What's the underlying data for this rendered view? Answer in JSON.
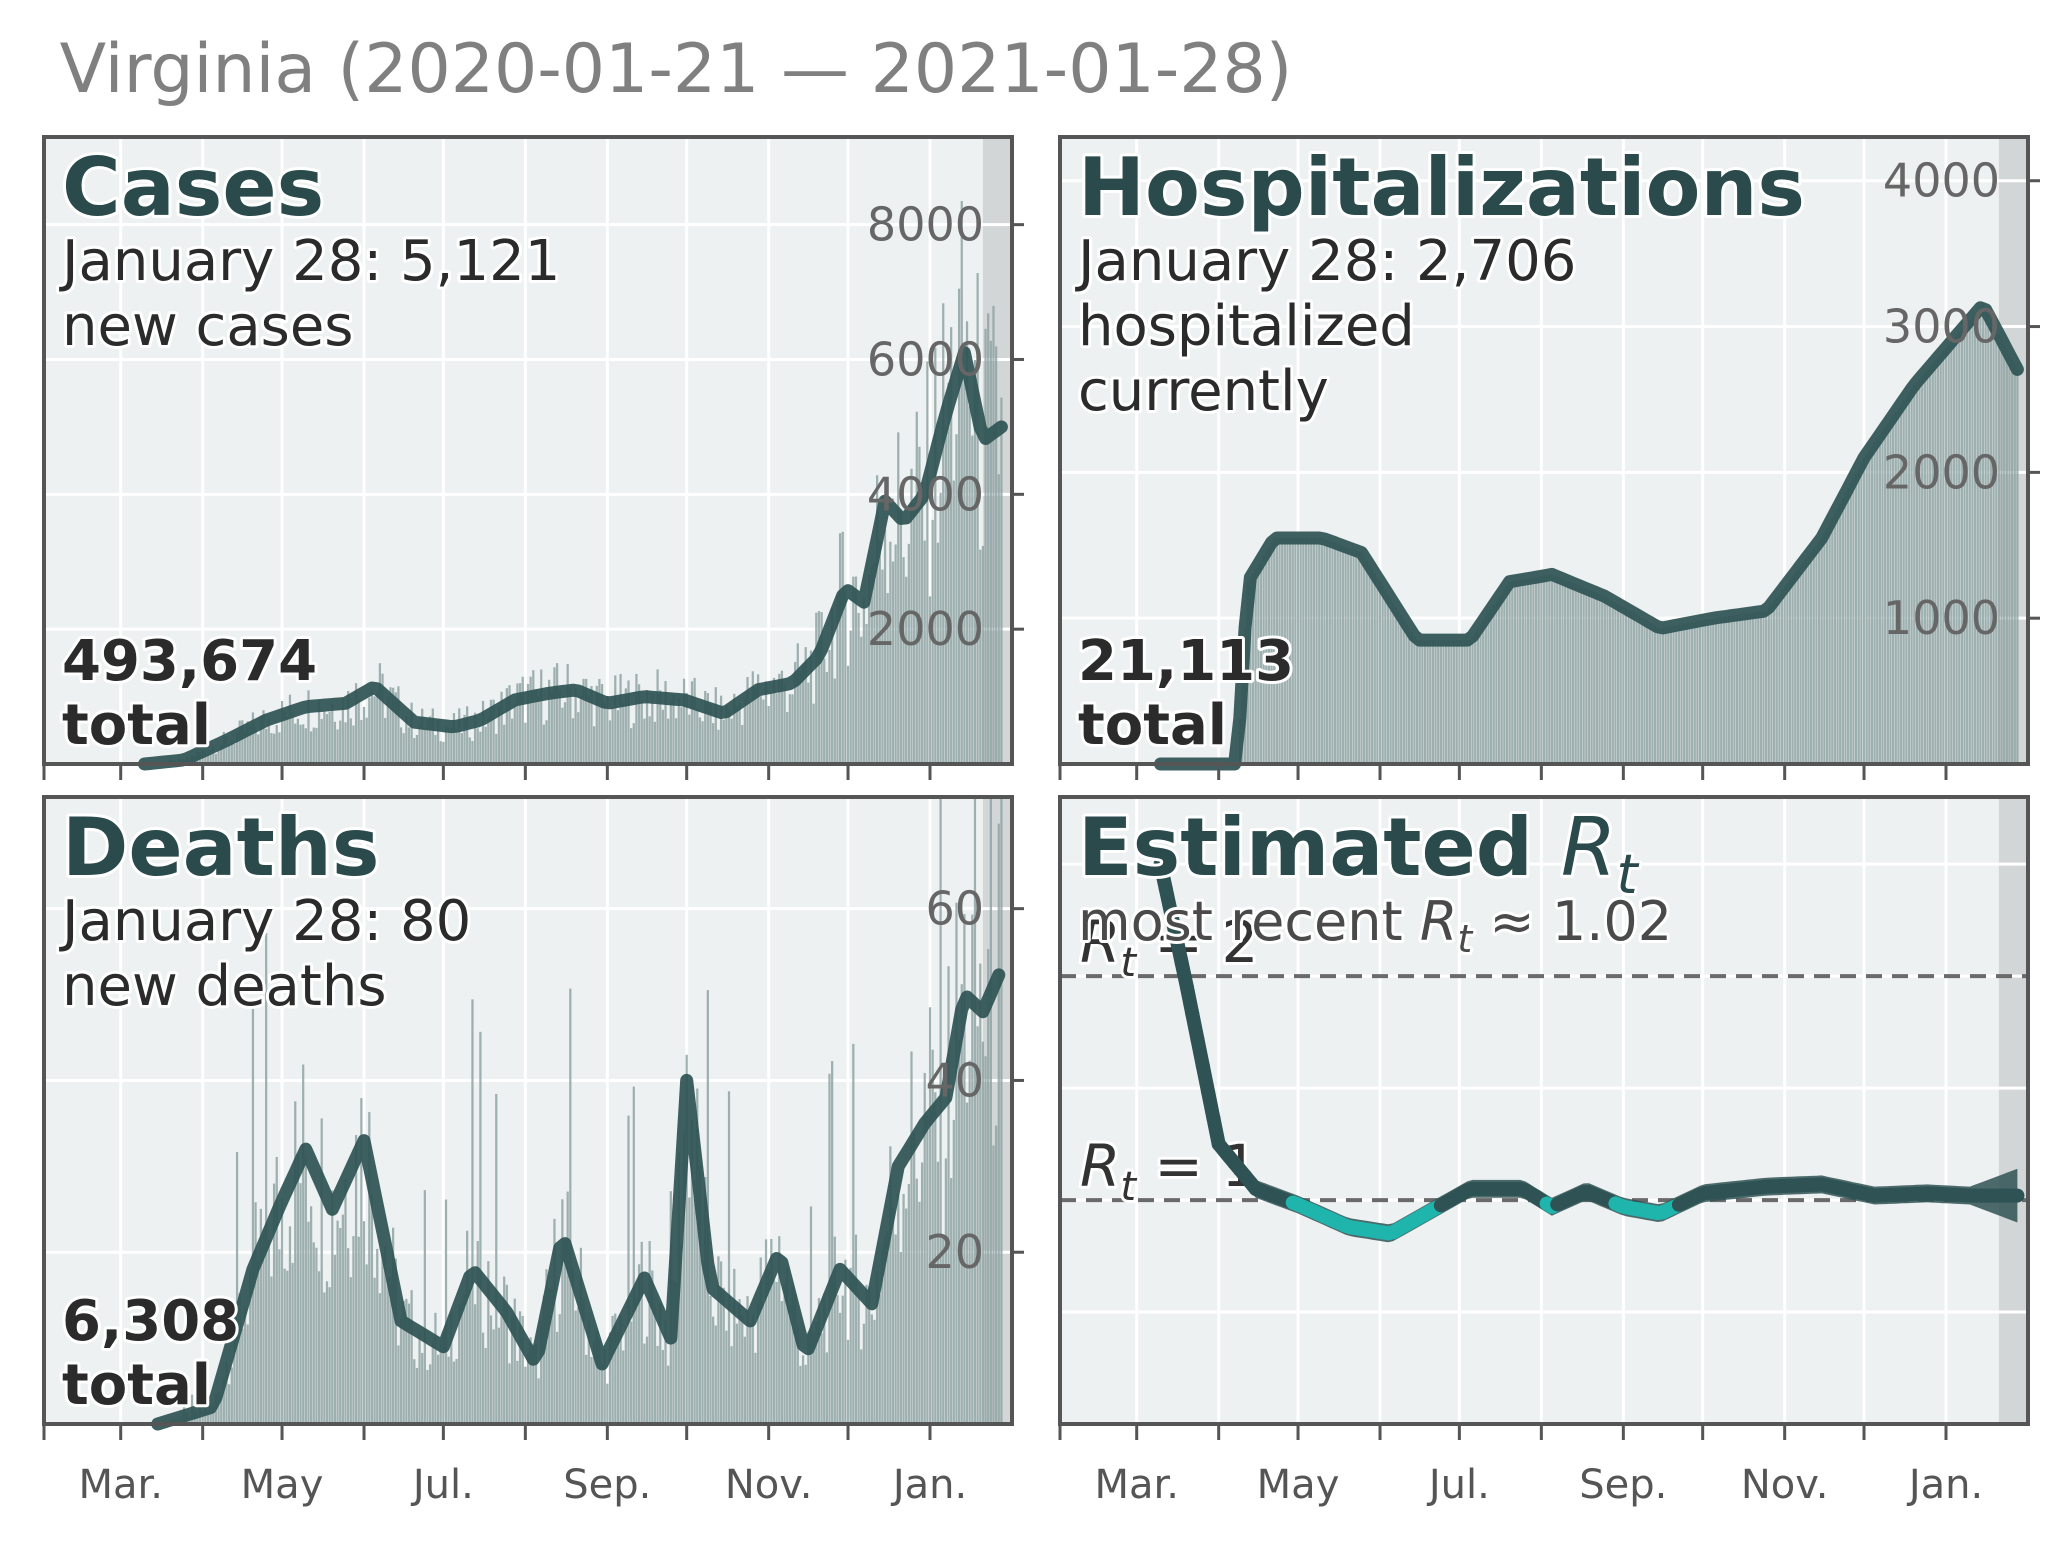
{
  "figure": {
    "title": "Virginia (2020-01-21 — 2021-01-28)"
  },
  "colors": {
    "panel_bg": "#eef1f1",
    "grid": "#ffffff",
    "line": "#2f5254",
    "bar": "#8fa3a3",
    "frame": "#555555",
    "shade": "#d3d6d6",
    "rt_below_one": "#1fb5ad",
    "title": "#2a4a4c"
  },
  "chart_data": [
    {
      "id": "cases",
      "type": "bar+line",
      "title": "Cases",
      "line1": "January 28: 5,121",
      "line2": "new cases",
      "total": "493,674",
      "total_label": "total",
      "y_ticks": [
        "2000",
        "4000",
        "6000",
        "8000"
      ],
      "ylim": [
        0,
        9300
      ],
      "x_ticks": [
        "Mar.",
        "May",
        "Jul.",
        "Sep.",
        "Nov.",
        "Jan."
      ],
      "smoothed_7day": [
        {
          "date": "2020-03-10",
          "value": 0
        },
        {
          "date": "2020-03-25",
          "value": 60
        },
        {
          "date": "2020-04-10",
          "value": 350
        },
        {
          "date": "2020-04-25",
          "value": 650
        },
        {
          "date": "2020-05-10",
          "value": 850
        },
        {
          "date": "2020-05-25",
          "value": 900
        },
        {
          "date": "2020-06-05",
          "value": 1150
        },
        {
          "date": "2020-06-20",
          "value": 620
        },
        {
          "date": "2020-07-05",
          "value": 550
        },
        {
          "date": "2020-07-15",
          "value": 650
        },
        {
          "date": "2020-07-28",
          "value": 950
        },
        {
          "date": "2020-08-10",
          "value": 1050
        },
        {
          "date": "2020-08-20",
          "value": 1100
        },
        {
          "date": "2020-09-01",
          "value": 900
        },
        {
          "date": "2020-09-15",
          "value": 1000
        },
        {
          "date": "2020-09-30",
          "value": 950
        },
        {
          "date": "2020-10-15",
          "value": 750
        },
        {
          "date": "2020-10-28",
          "value": 1100
        },
        {
          "date": "2020-11-10",
          "value": 1200
        },
        {
          "date": "2020-11-20",
          "value": 1600
        },
        {
          "date": "2020-11-30",
          "value": 2600
        },
        {
          "date": "2020-12-07",
          "value": 2400
        },
        {
          "date": "2020-12-15",
          "value": 3900
        },
        {
          "date": "2020-12-22",
          "value": 3600
        },
        {
          "date": "2020-12-30",
          "value": 4000
        },
        {
          "date": "2021-01-07",
          "value": 5200
        },
        {
          "date": "2021-01-14",
          "value": 6100
        },
        {
          "date": "2021-01-21",
          "value": 4800
        },
        {
          "date": "2021-01-28",
          "value": 5000
        }
      ]
    },
    {
      "id": "hospitalizations",
      "type": "bar+line",
      "title": "Hospitalizations",
      "line1": "January 28: 2,706",
      "line2": "hospitalized",
      "line3": "currently",
      "total": "21,113",
      "total_label": "total",
      "y_ticks": [
        "1000",
        "2000",
        "3000",
        "4000"
      ],
      "ylim": [
        0,
        4300
      ],
      "x_ticks": [
        "Mar.",
        "May",
        "Jul.",
        "Sep.",
        "Nov.",
        "Jan."
      ],
      "series": [
        {
          "date": "2020-03-10",
          "value": 0
        },
        {
          "date": "2020-04-08",
          "value": 0
        },
        {
          "date": "2020-04-12",
          "value": 1250
        },
        {
          "date": "2020-04-22",
          "value": 1550
        },
        {
          "date": "2020-05-10",
          "value": 1550
        },
        {
          "date": "2020-05-25",
          "value": 1450
        },
        {
          "date": "2020-06-15",
          "value": 850
        },
        {
          "date": "2020-07-05",
          "value": 850
        },
        {
          "date": "2020-07-20",
          "value": 1250
        },
        {
          "date": "2020-08-05",
          "value": 1300
        },
        {
          "date": "2020-08-25",
          "value": 1150
        },
        {
          "date": "2020-09-15",
          "value": 930
        },
        {
          "date": "2020-10-05",
          "value": 1000
        },
        {
          "date": "2020-10-25",
          "value": 1050
        },
        {
          "date": "2020-11-15",
          "value": 1550
        },
        {
          "date": "2020-12-01",
          "value": 2100
        },
        {
          "date": "2020-12-20",
          "value": 2600
        },
        {
          "date": "2021-01-15",
          "value": 3150
        },
        {
          "date": "2021-01-28",
          "value": 2706
        }
      ]
    },
    {
      "id": "deaths",
      "type": "bar+line",
      "title": "Deaths",
      "line1": "January 28: 80",
      "line2": "new deaths",
      "total": "6,308",
      "total_label": "total",
      "y_ticks": [
        "20",
        "40",
        "60"
      ],
      "ylim": [
        0,
        73
      ],
      "x_ticks": [
        "Mar.",
        "May",
        "Jul.",
        "Sep.",
        "Nov.",
        "Jan."
      ],
      "smoothed_7day": [
        {
          "date": "2020-03-15",
          "value": 0
        },
        {
          "date": "2020-04-05",
          "value": 2
        },
        {
          "date": "2020-04-20",
          "value": 18
        },
        {
          "date": "2020-05-01",
          "value": 26
        },
        {
          "date": "2020-05-10",
          "value": 32
        },
        {
          "date": "2020-05-20",
          "value": 25
        },
        {
          "date": "2020-06-01",
          "value": 33
        },
        {
          "date": "2020-06-15",
          "value": 12
        },
        {
          "date": "2020-07-01",
          "value": 9
        },
        {
          "date": "2020-07-12",
          "value": 18
        },
        {
          "date": "2020-07-25",
          "value": 13
        },
        {
          "date": "2020-08-05",
          "value": 7
        },
        {
          "date": "2020-08-15",
          "value": 22
        },
        {
          "date": "2020-08-30",
          "value": 7
        },
        {
          "date": "2020-09-15",
          "value": 17
        },
        {
          "date": "2020-09-25",
          "value": 10
        },
        {
          "date": "2020-10-01",
          "value": 40
        },
        {
          "date": "2020-10-10",
          "value": 16
        },
        {
          "date": "2020-10-25",
          "value": 12
        },
        {
          "date": "2020-11-05",
          "value": 20
        },
        {
          "date": "2020-11-15",
          "value": 8
        },
        {
          "date": "2020-11-28",
          "value": 18
        },
        {
          "date": "2020-12-10",
          "value": 14
        },
        {
          "date": "2020-12-20",
          "value": 30
        },
        {
          "date": "2020-12-30",
          "value": 35
        },
        {
          "date": "2021-01-07",
          "value": 38
        },
        {
          "date": "2021-01-14",
          "value": 50
        },
        {
          "date": "2021-01-21",
          "value": 48
        },
        {
          "date": "2021-01-28",
          "value": 53
        }
      ]
    },
    {
      "id": "rt",
      "type": "line",
      "title": "Estimated",
      "title_sym": "R",
      "title_sub": "t",
      "subtitle_prefix": "most recent ",
      "subtitle_sym": "R",
      "subtitle_sub": "t",
      "subtitle_value": " ≈ 1.02",
      "ref_lines": [
        {
          "value": 2,
          "sym": "R",
          "sub": "t",
          "text": " = 2"
        },
        {
          "value": 1,
          "sym": "R",
          "sub": "t",
          "text": " = 1"
        }
      ],
      "x_ticks": [
        "Mar.",
        "May",
        "Jul.",
        "Sep.",
        "Nov.",
        "Jan."
      ],
      "ylim": [
        0,
        2.8
      ],
      "estimate": [
        {
          "date": "2020-03-10",
          "value": 2.5
        },
        {
          "date": "2020-03-20",
          "value": 1.95
        },
        {
          "date": "2020-04-01",
          "value": 1.25
        },
        {
          "date": "2020-04-15",
          "value": 1.05
        },
        {
          "date": "2020-05-01",
          "value": 0.98
        },
        {
          "date": "2020-05-20",
          "value": 0.88
        },
        {
          "date": "2020-06-05",
          "value": 0.85
        },
        {
          "date": "2020-06-20",
          "value": 0.95
        },
        {
          "date": "2020-07-05",
          "value": 1.05
        },
        {
          "date": "2020-07-25",
          "value": 1.05
        },
        {
          "date": "2020-08-05",
          "value": 0.97
        },
        {
          "date": "2020-08-18",
          "value": 1.04
        },
        {
          "date": "2020-09-01",
          "value": 0.97
        },
        {
          "date": "2020-09-15",
          "value": 0.94
        },
        {
          "date": "2020-10-01",
          "value": 1.03
        },
        {
          "date": "2020-10-25",
          "value": 1.06
        },
        {
          "date": "2020-11-15",
          "value": 1.07
        },
        {
          "date": "2020-12-05",
          "value": 1.02
        },
        {
          "date": "2020-12-25",
          "value": 1.03
        },
        {
          "date": "2021-01-10",
          "value": 1.02
        },
        {
          "date": "2021-01-28",
          "value": 1.02
        }
      ]
    }
  ]
}
